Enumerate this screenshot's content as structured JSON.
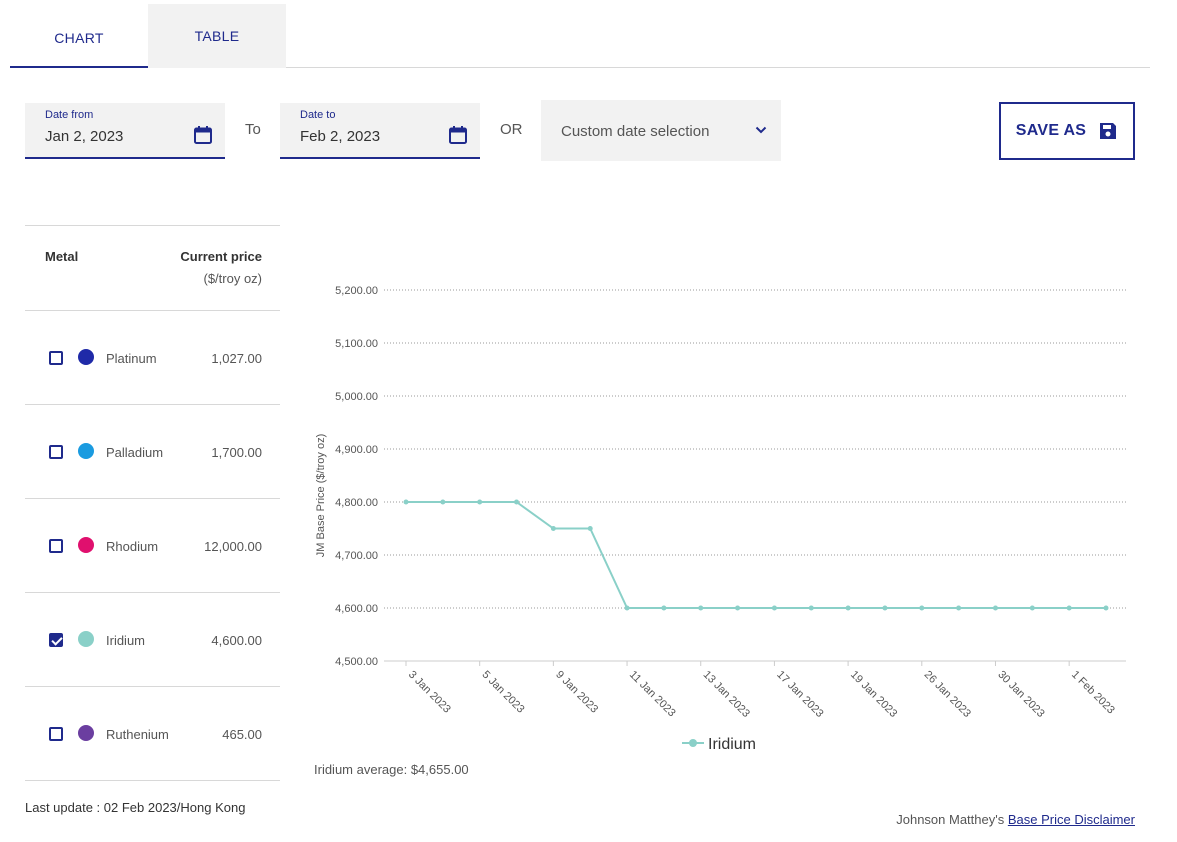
{
  "tabs": [
    {
      "label": "CHART"
    },
    {
      "label": "TABLE"
    }
  ],
  "filters": {
    "date_from": {
      "label": "Date from",
      "value": "Jan 2, 2023"
    },
    "to_label": "To",
    "date_to": {
      "label": "Date to",
      "value": "Feb 2, 2023"
    },
    "or_label": "OR",
    "custom_select": {
      "value": "Custom date selection"
    },
    "save_label": "SAVE AS"
  },
  "metals_table": {
    "header_metal": "Metal",
    "header_price": "Current price",
    "header_unit": "($/troy oz)",
    "rows": [
      {
        "name": "Platinum",
        "price": "1,027.00",
        "checked": false,
        "color": "#1f2aa8"
      },
      {
        "name": "Palladium",
        "price": "1,700.00",
        "checked": false,
        "color": "#1a9be0"
      },
      {
        "name": "Rhodium",
        "price": "12,000.00",
        "checked": false,
        "color": "#e0106e"
      },
      {
        "name": "Iridium",
        "price": "4,600.00",
        "checked": true,
        "color": "#8ad0c8"
      },
      {
        "name": "Ruthenium",
        "price": "465.00",
        "checked": false,
        "color": "#6b3ea0"
      }
    ]
  },
  "last_update": "Last update : 02 Feb 2023/Hong Kong",
  "average_text": "Iridium average: $4,655.00",
  "disclaimer": {
    "prefix": "Johnson Matthey's ",
    "link": "Base Price Disclaimer"
  },
  "chart_data": {
    "type": "line",
    "ylabel": "JM Base Price ($/troy oz)",
    "ylim": [
      4500,
      5200
    ],
    "ytick_labels": [
      "5,200.00",
      "5,100.00",
      "5,000.00",
      "4,900.00",
      "4,800.00",
      "4,700.00",
      "4,600.00",
      "4,500.00"
    ],
    "yticks": [
      5200,
      5100,
      5000,
      4900,
      4800,
      4700,
      4600,
      4500
    ],
    "xtick_labels": [
      "3 Jan 2023",
      "5 Jan 2023",
      "9 Jan 2023",
      "11 Jan 2023",
      "13 Jan 2023",
      "17 Jan 2023",
      "19 Jan 2023",
      "26 Jan 2023",
      "30 Jan 2023",
      "1 Feb 2023"
    ],
    "x": [
      "3 Jan 2023",
      "4 Jan 2023",
      "5 Jan 2023",
      "6 Jan 2023",
      "9 Jan 2023",
      "10 Jan 2023",
      "11 Jan 2023",
      "12 Jan 2023",
      "13 Jan 2023",
      "16 Jan 2023",
      "17 Jan 2023",
      "18 Jan 2023",
      "19 Jan 2023",
      "20 Jan 2023",
      "26 Jan 2023",
      "27 Jan 2023",
      "30 Jan 2023",
      "31 Jan 2023",
      "1 Feb 2023",
      "2 Feb 2023"
    ],
    "series": [
      {
        "name": "Iridium",
        "color": "#8ad0c8",
        "values": [
          4800,
          4800,
          4800,
          4800,
          4750,
          4750,
          4600,
          4600,
          4600,
          4600,
          4600,
          4600,
          4600,
          4600,
          4600,
          4600,
          4600,
          4600,
          4600,
          4600
        ]
      }
    ],
    "grid": "horizontal-dotted",
    "legend": "bottom-center"
  }
}
